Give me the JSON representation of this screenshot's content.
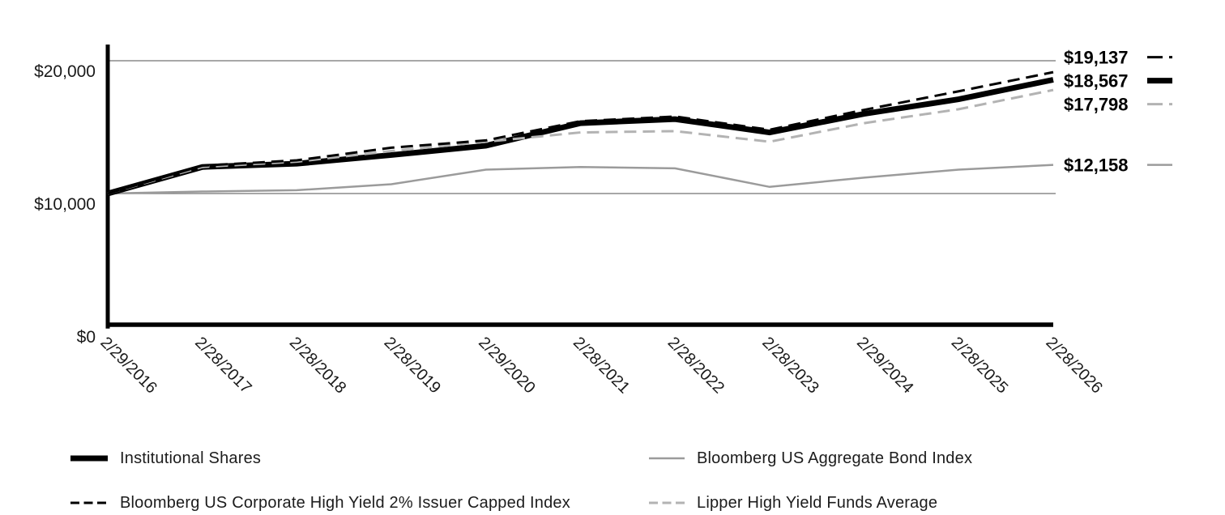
{
  "chart_data": {
    "type": "line",
    "title": "",
    "xlabel": "",
    "ylabel": "",
    "ylim": [
      0,
      21200
    ],
    "grid": "horizontal",
    "legend_position": "bottom",
    "categories": [
      "2/29/2016",
      "2/28/2017",
      "2/28/2018",
      "2/28/2019",
      "2/29/2020",
      "2/28/2021",
      "2/28/2022",
      "2/28/2023",
      "2/29/2024",
      "2/28/2025",
      "2/28/2026"
    ],
    "yticks": [
      {
        "value": 0,
        "label": "$0"
      },
      {
        "value": 10000,
        "label": "$10,000"
      },
      {
        "value": 20000,
        "label": "$20,000"
      }
    ],
    "gridline_values": [
      10000,
      20000
    ],
    "series": [
      {
        "name": "Institutional Shares",
        "style": "solid",
        "color": "#000000",
        "width": 7,
        "end_label": "$18,567",
        "values": [
          10000,
          12000,
          12250,
          12900,
          13600,
          15300,
          15600,
          14600,
          16000,
          17100,
          18567
        ]
      },
      {
        "name": "Bloomberg US Corporate High Yield 2% Issuer Capped Index",
        "style": "dashed",
        "color": "#000000",
        "width": 3,
        "end_label": "$19,137",
        "values": [
          10000,
          12100,
          12500,
          13450,
          14000,
          15450,
          15800,
          14800,
          16300,
          17700,
          19137
        ]
      },
      {
        "name": "Bloomberg US Aggregate Bond Index",
        "style": "solid",
        "color": "#9b9b9b",
        "width": 2.5,
        "end_label": "$12,158",
        "values": [
          10000,
          10150,
          10250,
          10700,
          11800,
          12000,
          11900,
          10500,
          11200,
          11800,
          12158
        ]
      },
      {
        "name": "Lipper High Yield Funds Average",
        "style": "dashed",
        "color": "#b3b3b3",
        "width": 3,
        "end_label": "$17,798",
        "values": [
          10000,
          12000,
          12400,
          13200,
          13900,
          14600,
          14700,
          13900,
          15300,
          16350,
          17798
        ]
      }
    ],
    "colors": {
      "axis": "#000000",
      "gridline": "#8a8a8a",
      "tick_label": "#1a1a1a",
      "end_label": "#000000"
    }
  },
  "legend": {
    "items": [
      {
        "label": "Institutional Shares",
        "series_index": 0
      },
      {
        "label": "Bloomberg US Aggregate Bond Index",
        "series_index": 2
      },
      {
        "label": "Bloomberg US Corporate High Yield 2% Issuer Capped Index",
        "series_index": 1
      },
      {
        "label": "Lipper High Yield Funds Average",
        "series_index": 3
      }
    ]
  }
}
